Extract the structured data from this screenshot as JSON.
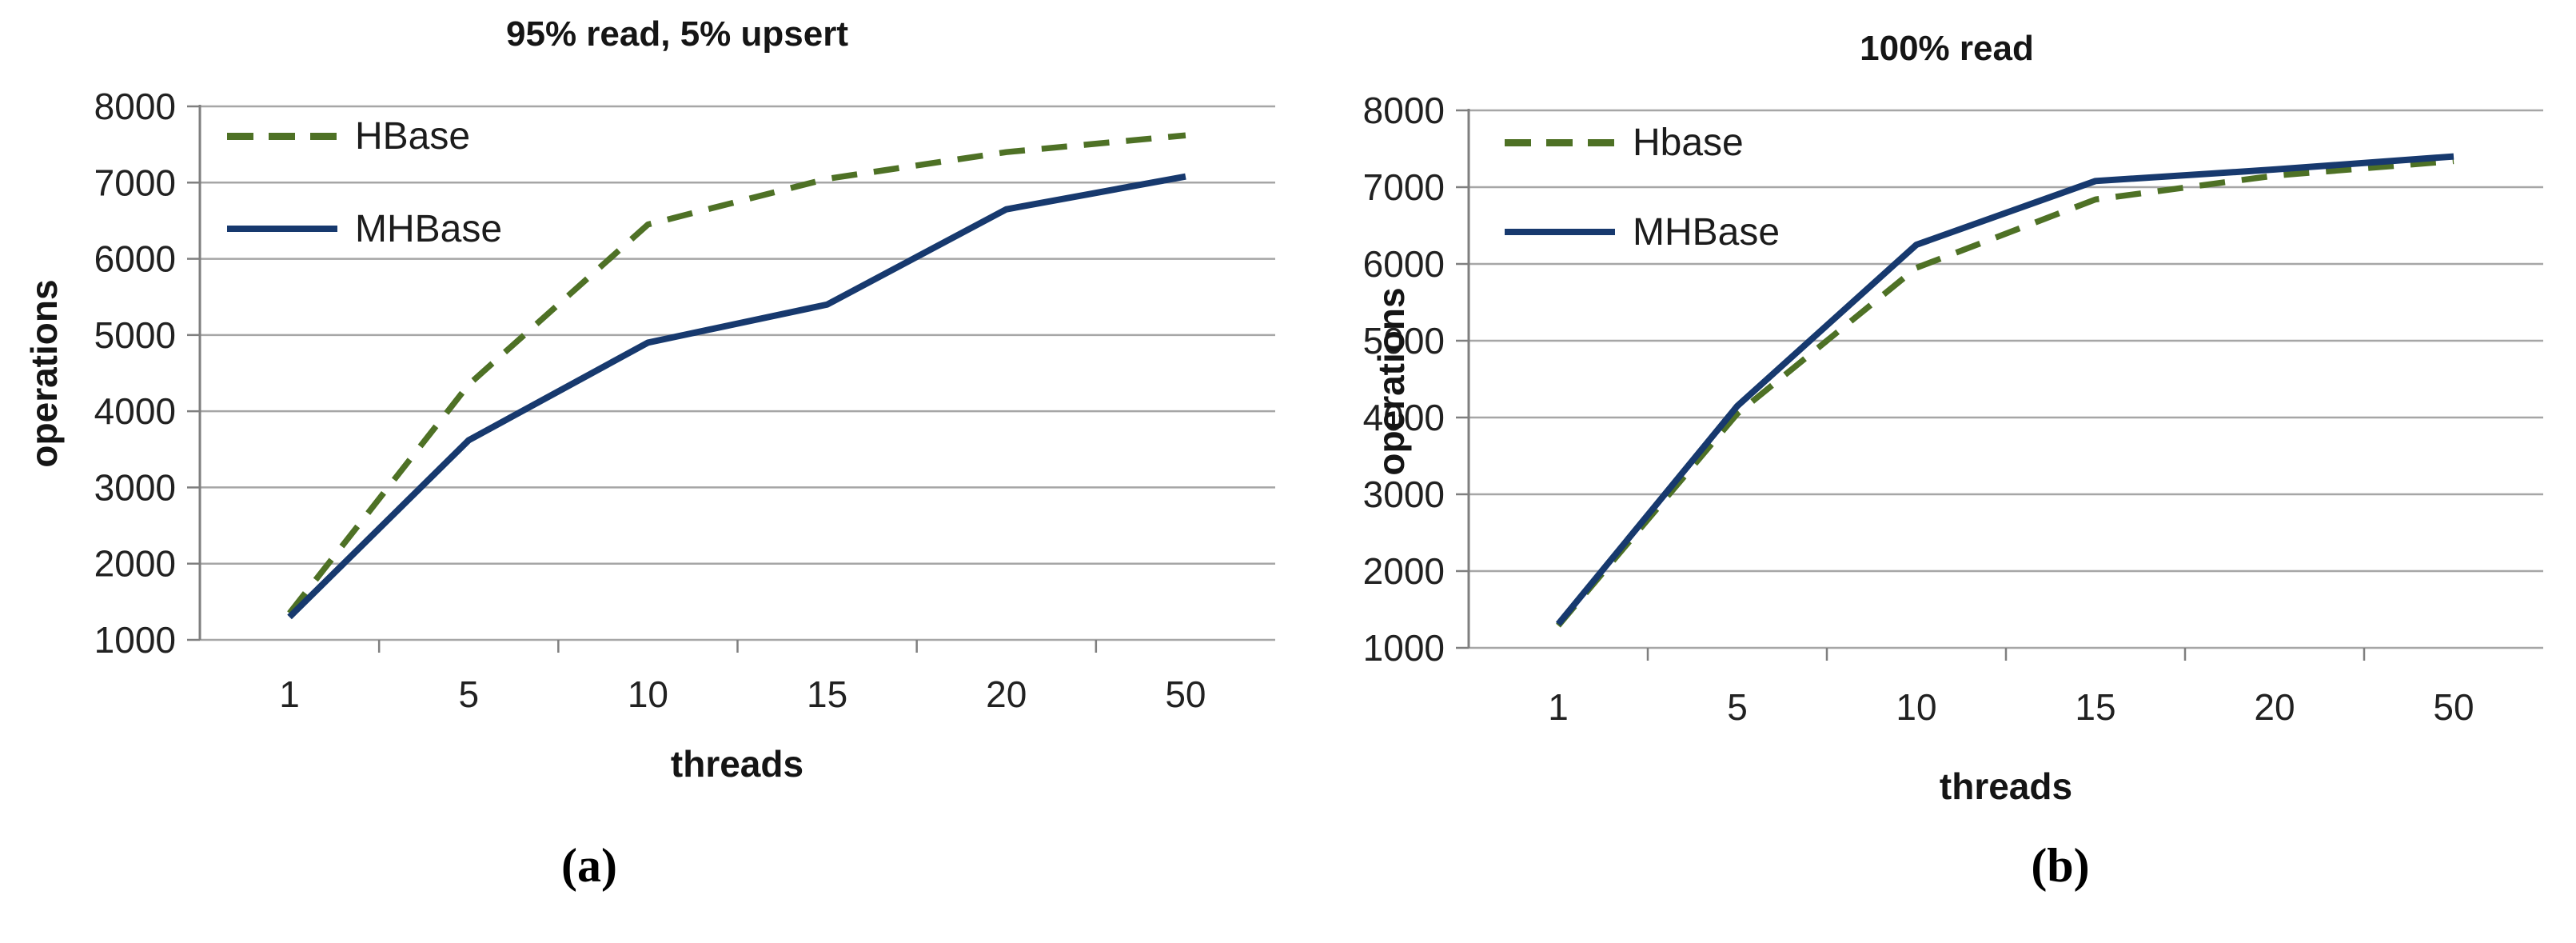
{
  "figure": {
    "description": "Two side-by-side line charts comparing HBase and MHBase throughput versus thread count",
    "background": "#ffffff",
    "grid_color": "#a6a6a6",
    "axis_color": "#7f7f7f"
  },
  "chart_data": [
    {
      "type": "line",
      "title": "95% read, 5% upsert",
      "xlabel": "threads",
      "ylabel": "operations",
      "caption": "(a)",
      "categories": [
        "1",
        "5",
        "10",
        "15",
        "20",
        "50"
      ],
      "yticks": [
        1000,
        2000,
        3000,
        4000,
        5000,
        6000,
        7000,
        8000
      ],
      "ylim": [
        1000,
        8000
      ],
      "grid": true,
      "legend_position": "top-left-inside",
      "series": [
        {
          "name": "HBase",
          "style": "dashed",
          "color": "#4e7125",
          "values": [
            1350,
            4350,
            6450,
            7050,
            7400,
            7620
          ]
        },
        {
          "name": "MHBase",
          "style": "solid",
          "color": "#17396e",
          "values": [
            1300,
            3620,
            4900,
            5400,
            6650,
            7080
          ]
        }
      ]
    },
    {
      "type": "line",
      "title": "100% read",
      "xlabel": "threads",
      "ylabel": "operations",
      "caption": "(b)",
      "categories": [
        "1",
        "5",
        "10",
        "15",
        "20",
        "50"
      ],
      "yticks": [
        1000,
        2000,
        3000,
        4000,
        5000,
        6000,
        7000,
        8000
      ],
      "ylim": [
        1000,
        8000
      ],
      "grid": true,
      "legend_position": "top-left-inside",
      "series": [
        {
          "name": "Hbase",
          "style": "dashed",
          "color": "#4e7125",
          "values": [
            1290,
            4050,
            5950,
            6840,
            7150,
            7340
          ]
        },
        {
          "name": "MHBase",
          "style": "solid",
          "color": "#17396e",
          "values": [
            1310,
            4150,
            6250,
            7080,
            7230,
            7400
          ]
        }
      ]
    }
  ]
}
